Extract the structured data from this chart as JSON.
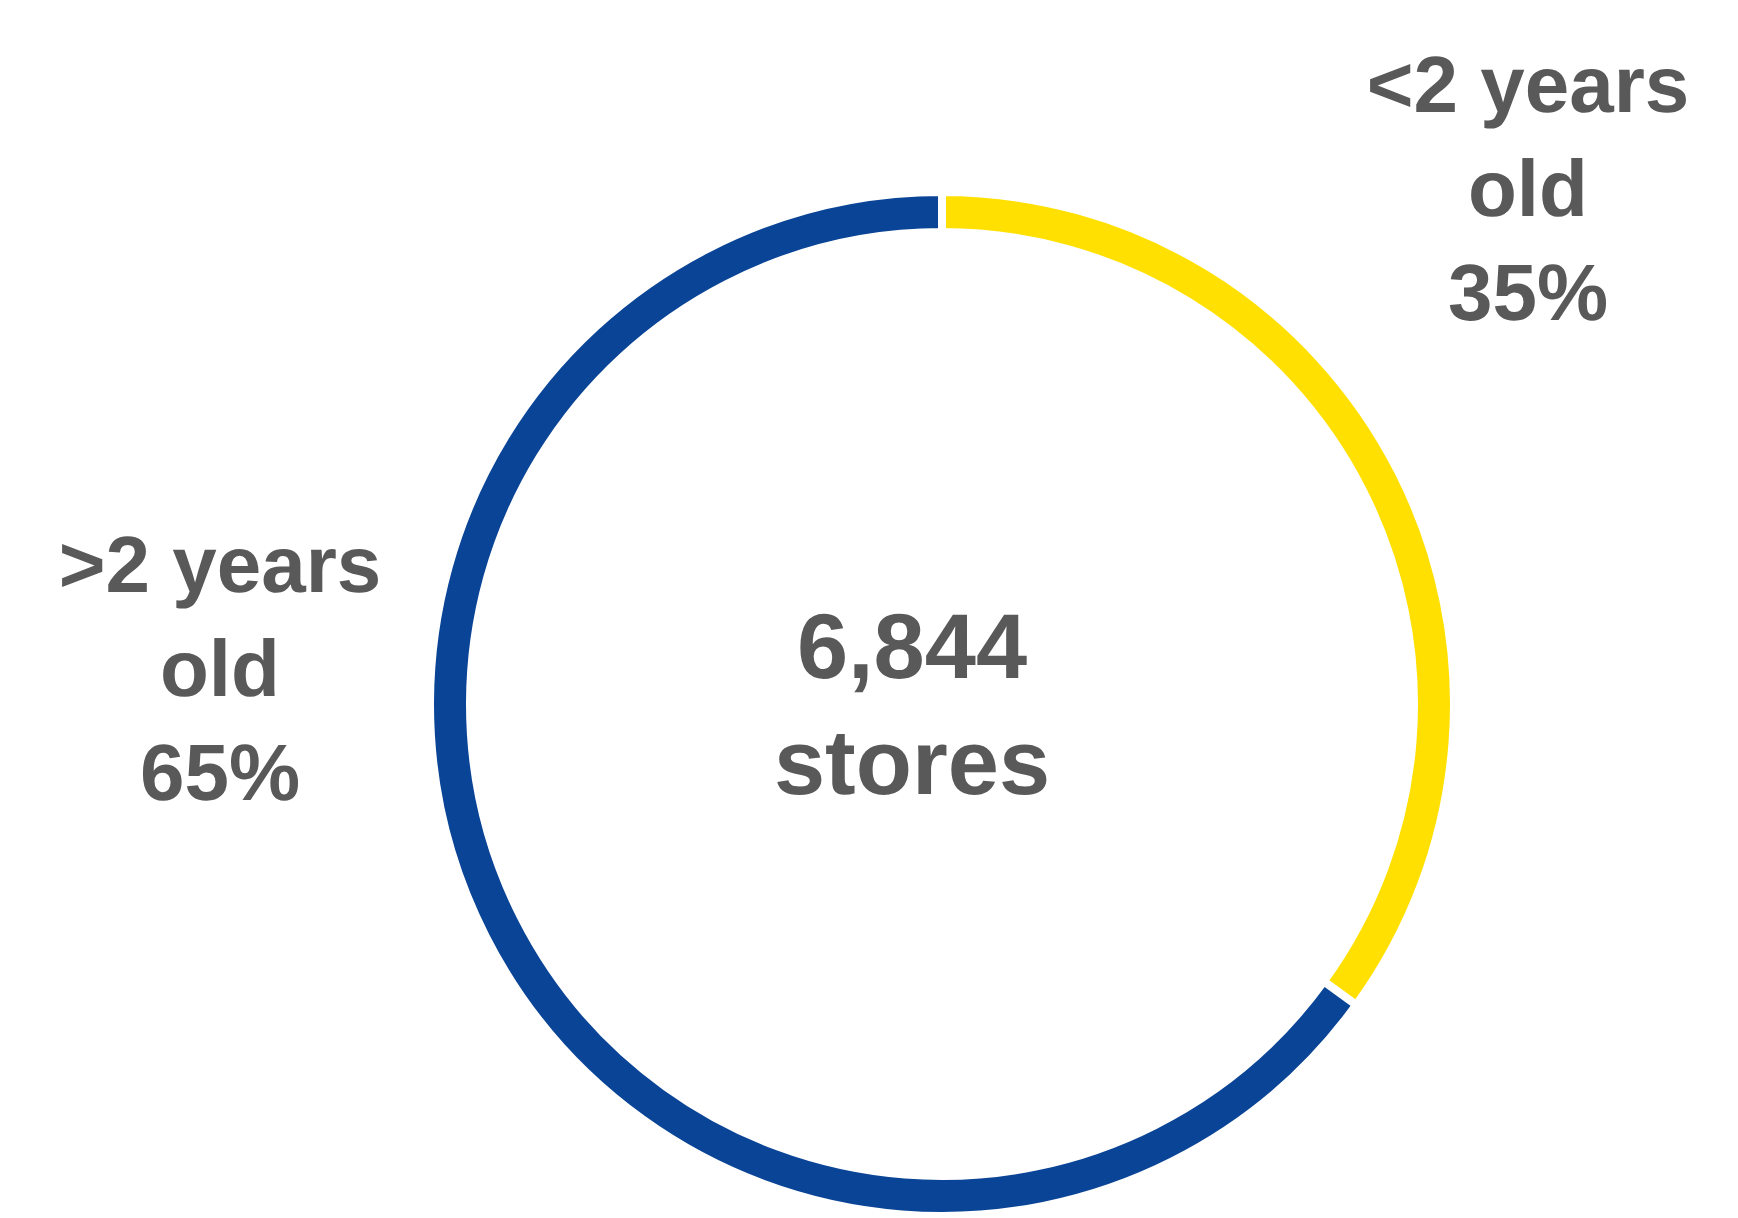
{
  "chart_data": {
    "type": "donut",
    "categories": [
      "<2 years old",
      ">2 years old"
    ],
    "values": [
      35,
      65
    ],
    "value_labels": [
      "35%",
      "65%"
    ],
    "colors": [
      "#ffe000",
      "#0a4496"
    ],
    "annotations": [
      "6,844 stores"
    ]
  }
}
